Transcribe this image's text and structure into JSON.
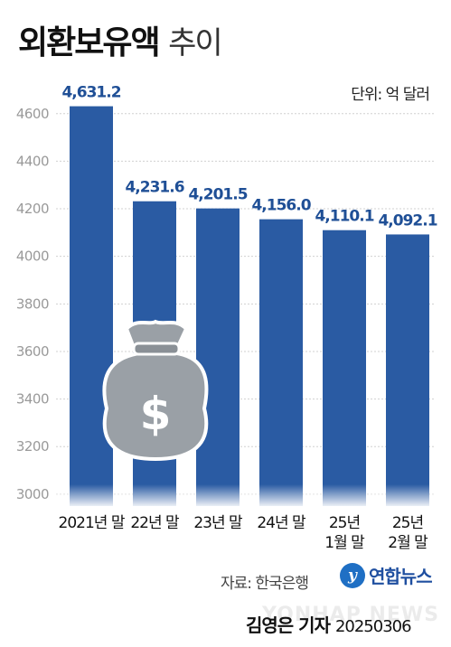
{
  "title": {
    "main": "외환보유액",
    "sub": "추이"
  },
  "unit_label": "단위: 억 달러",
  "source": "자료: 한국은행",
  "logo": {
    "mark": "y",
    "text": "연합뉴스"
  },
  "reporter": {
    "name": "김영은 기자",
    "date": "20250306"
  },
  "watermark": "YONHAP NEWS",
  "colors": {
    "bar": "#2a5ba3",
    "label": "#1f4f96",
    "grid": "#d0d0d0",
    "tick": "#9a9a9a",
    "bag": "#9aa0a6"
  },
  "chart_data": {
    "type": "bar",
    "categories": [
      "2021년 말",
      "22년 말",
      "23년 말",
      "24년 말",
      "25년\n1월 말",
      "25년\n2월 말"
    ],
    "values": [
      4631.2,
      4231.6,
      4201.5,
      4156.0,
      4110.1,
      4092.1
    ],
    "value_labels": [
      "4,631.2",
      "4,231.6",
      "4,201.5",
      "4,156.0",
      "4,110.1",
      "4,092.1"
    ],
    "yticks": [
      3000,
      3200,
      3400,
      3600,
      3800,
      4000,
      4200,
      4400,
      4600
    ],
    "ylim": [
      2950,
      4660
    ],
    "grid": true
  },
  "icon": {
    "name": "money-bag-icon",
    "symbol": "$"
  }
}
